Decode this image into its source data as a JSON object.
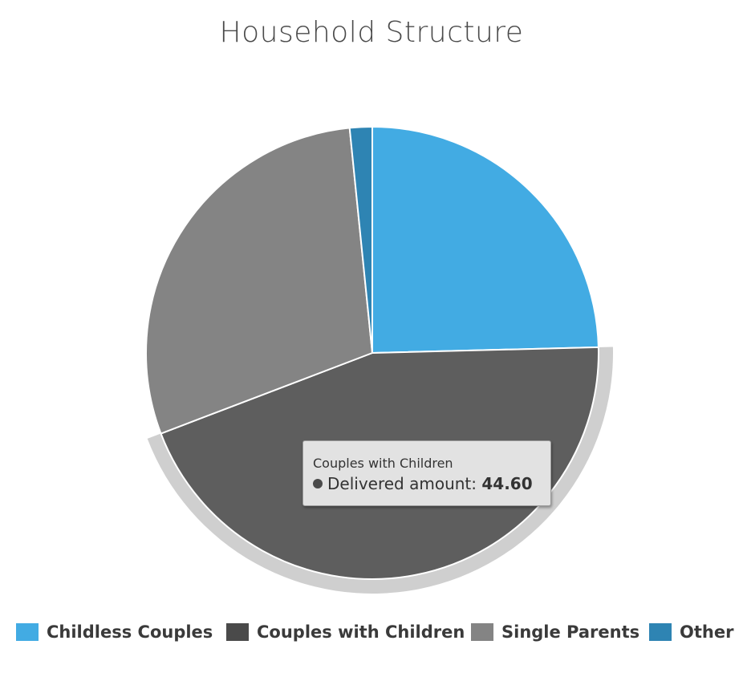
{
  "chart_data": {
    "type": "pie",
    "title": "Household Structure",
    "series_name": "Delivered amount",
    "slices": [
      {
        "name": "Childless Couples",
        "value": 24.6,
        "color": "#42abe3"
      },
      {
        "name": "Couples with Children",
        "value": 44.6,
        "color": "#5e5e5e"
      },
      {
        "name": "Single Parents",
        "value": 29.2,
        "color": "#848484"
      },
      {
        "name": "Other",
        "value": 1.6,
        "color": "#2e84b3"
      }
    ],
    "highlighted": "Couples with Children",
    "legend_position": "bottom"
  },
  "tooltip": {
    "header": "Couples with Children",
    "series_label": "Delivered amount: ",
    "value": "44.60"
  },
  "legend": {
    "items": [
      {
        "label": "Childless Couples",
        "color": "#42abe3"
      },
      {
        "label": "Couples with Children",
        "color": "#4a4a4a"
      },
      {
        "label": "Single Parents",
        "color": "#848484"
      },
      {
        "label": "Other",
        "color": "#2e84b3"
      }
    ]
  }
}
